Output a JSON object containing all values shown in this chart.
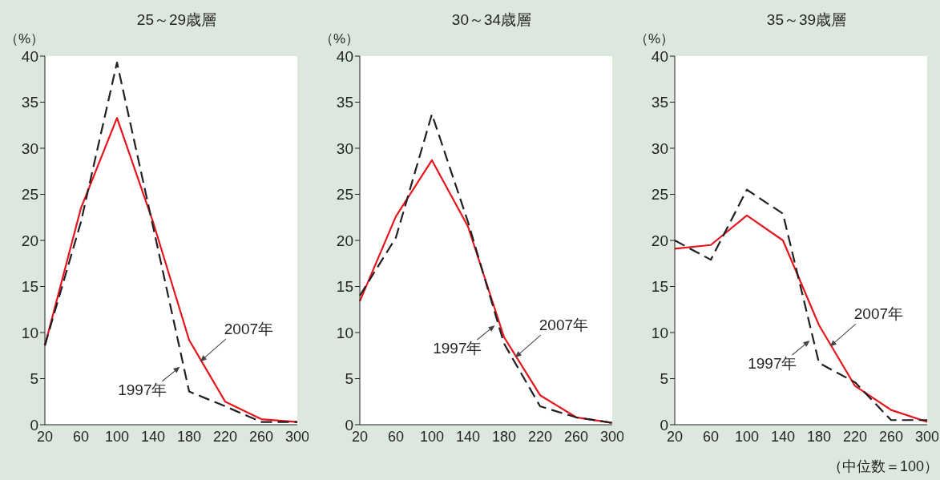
{
  "chart_data": [
    {
      "type": "line",
      "title": "25～29歳層",
      "ylabel": "（%）",
      "categories": [
        "20",
        "60",
        "100",
        "140",
        "180",
        "220",
        "260",
        "300"
      ],
      "ylim": [
        0,
        40
      ],
      "yticks": [
        0,
        5,
        10,
        15,
        20,
        25,
        30,
        35,
        40
      ],
      "grid": false,
      "marker": "none",
      "series": [
        {
          "name": "2007年",
          "color": "#e8141c",
          "line_style": "solid",
          "values": [
            8.6,
            23.5,
            33.3,
            22.0,
            9.2,
            2.5,
            0.6,
            0.3
          ]
        },
        {
          "name": "1997年",
          "color": "#231f20",
          "line_style": "dashed",
          "values": [
            8.6,
            22.0,
            39.3,
            21.5,
            3.6,
            2.0,
            0.3,
            0.3
          ]
        }
      ]
    },
    {
      "type": "line",
      "title": "30～34歳層",
      "ylabel": "（%）",
      "categories": [
        "20",
        "60",
        "100",
        "140",
        "180",
        "220",
        "260",
        "300"
      ],
      "ylim": [
        0,
        40
      ],
      "yticks": [
        0,
        5,
        10,
        15,
        20,
        25,
        30,
        35,
        40
      ],
      "grid": false,
      "marker": "none",
      "series": [
        {
          "name": "2007年",
          "color": "#e8141c",
          "line_style": "solid",
          "values": [
            13.4,
            22.6,
            28.7,
            21.5,
            9.5,
            3.2,
            0.8,
            0.2
          ]
        },
        {
          "name": "1997年",
          "color": "#231f20",
          "line_style": "dashed",
          "values": [
            14.0,
            20.3,
            33.7,
            22.0,
            8.8,
            2.0,
            0.8,
            0.2
          ]
        }
      ]
    },
    {
      "type": "line",
      "title": "35～39歳層",
      "ylabel": "（%）",
      "categories": [
        "20",
        "60",
        "100",
        "140",
        "180",
        "220",
        "260",
        "300"
      ],
      "ylim": [
        0,
        40
      ],
      "yticks": [
        0,
        5,
        10,
        15,
        20,
        25,
        30,
        35,
        40
      ],
      "grid": false,
      "marker": "none",
      "annotations": [
        "（中位数＝100）"
      ],
      "series": [
        {
          "name": "2007年",
          "color": "#e8141c",
          "line_style": "solid",
          "values": [
            19.1,
            19.5,
            22.7,
            20.0,
            10.8,
            4.2,
            1.6,
            0.3
          ]
        },
        {
          "name": "1997年",
          "color": "#231f20",
          "line_style": "dashed",
          "values": [
            20.0,
            17.9,
            25.5,
            22.9,
            6.7,
            4.6,
            0.5,
            0.5
          ]
        }
      ]
    }
  ]
}
